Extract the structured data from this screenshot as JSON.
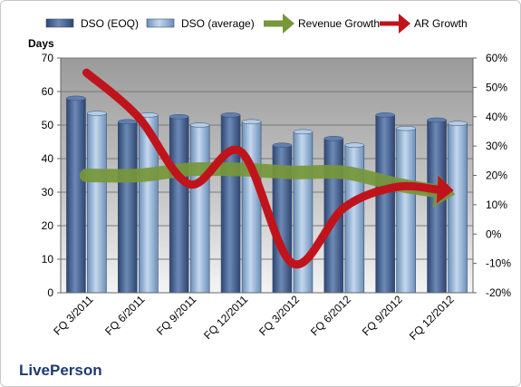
{
  "chart_data": {
    "type": "bar",
    "categories": [
      "FQ 3/2011",
      "FQ 6/2011",
      "FQ 9/2011",
      "FQ 12/2011",
      "FQ 3/2012",
      "FQ 6/2012",
      "FQ 9/2012",
      "FQ 12/2012"
    ],
    "series": [
      {
        "name": "DSO (EOQ)",
        "type": "bar",
        "axis": "left",
        "color": "#4a6a9a",
        "values": [
          58,
          51,
          52.5,
          53,
          44,
          46,
          53,
          51.5
        ]
      },
      {
        "name": "DSO (average)",
        "type": "bar",
        "axis": "left",
        "color": "#9ab8d8",
        "values": [
          53.5,
          53,
          50,
          51,
          48,
          44,
          49,
          50.5
        ]
      },
      {
        "name": "Revenue Growth",
        "type": "arrow-line",
        "axis": "right",
        "color": "#76973a",
        "values": [
          20,
          20,
          22,
          22,
          21,
          21,
          17,
          14
        ]
      },
      {
        "name": "AR Growth",
        "type": "arrow-line",
        "axis": "right",
        "color": "#c0141c",
        "values": [
          55,
          40,
          17,
          28,
          -10,
          9,
          16,
          15
        ]
      }
    ],
    "ylabel": "Days",
    "ylim": [
      0,
      70
    ],
    "y_ticks": [
      "0",
      "10",
      "20",
      "30",
      "40",
      "50",
      "60",
      "70"
    ],
    "y2lim": [
      -20,
      60
    ],
    "y2_ticks": [
      "-20%",
      "-10%",
      "0%",
      "10%",
      "20%",
      "30%",
      "40%",
      "50%",
      "60%"
    ],
    "grid": true,
    "legend_position": "top",
    "plot_background": "gradient-grey"
  },
  "footer": {
    "company": "LivePerson"
  }
}
